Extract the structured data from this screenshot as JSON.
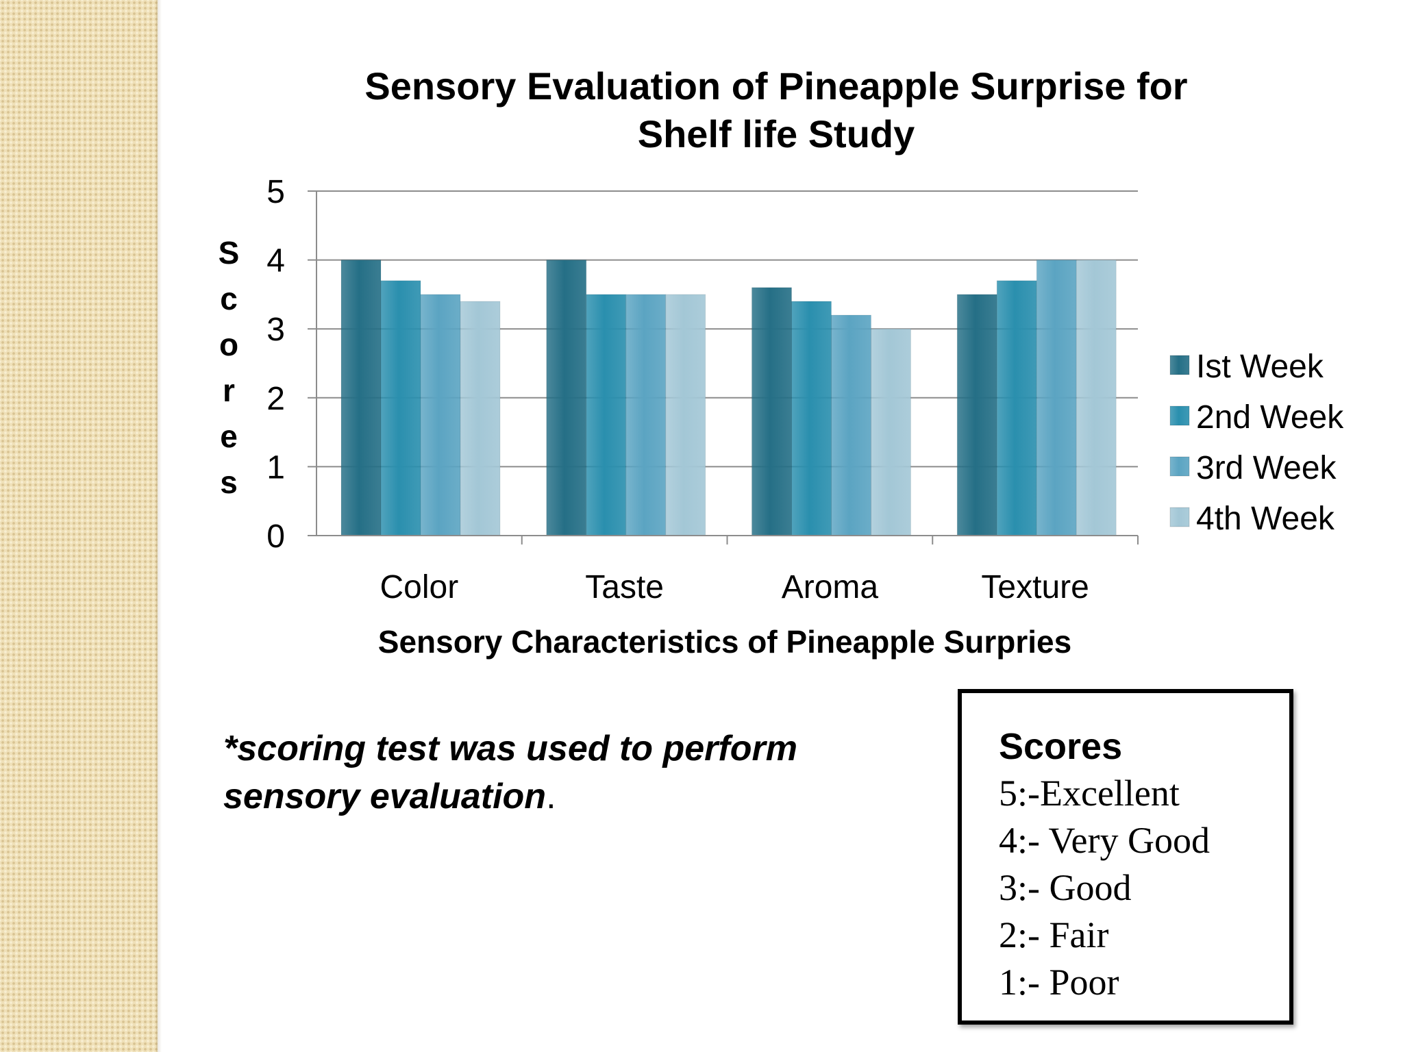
{
  "chart_data": {
    "type": "bar",
    "title": "Sensory Evaluation of Pineapple Surprise for Shelf life Study",
    "title_lines": [
      "Sensory Evaluation of Pineapple Surprise for",
      "Shelf life Study"
    ],
    "xlabel": "Sensory Characteristics of Pineapple Surpries",
    "ylabel": "Scores",
    "ylim": [
      0,
      5
    ],
    "yticks": [
      0,
      1,
      2,
      3,
      4,
      5
    ],
    "grid": true,
    "legend_position": "right",
    "categories": [
      "Color",
      "Taste",
      "Aroma",
      "Texture"
    ],
    "series": [
      {
        "name": "Ist Week",
        "values": [
          4.0,
          4.0,
          3.6,
          3.5
        ],
        "color": "#256f86"
      },
      {
        "name": "2nd Week",
        "values": [
          3.7,
          3.5,
          3.4,
          3.7
        ],
        "color": "#2a8fae"
      },
      {
        "name": "3rd Week",
        "values": [
          3.5,
          3.5,
          3.2,
          4.0
        ],
        "color": "#5ba4c2"
      },
      {
        "name": "4th Week",
        "values": [
          3.4,
          3.5,
          3.0,
          4.0
        ],
        "color": "#a3c7d6"
      }
    ]
  },
  "note": {
    "text": "*scoring test was used to perform sensory evaluation",
    "period": "."
  },
  "score_box": {
    "title": "Scores",
    "lines": [
      "5:-Excellent",
      "4:- Very Good",
      "3:- Good",
      "2:- Fair",
      "1:- Poor"
    ]
  }
}
